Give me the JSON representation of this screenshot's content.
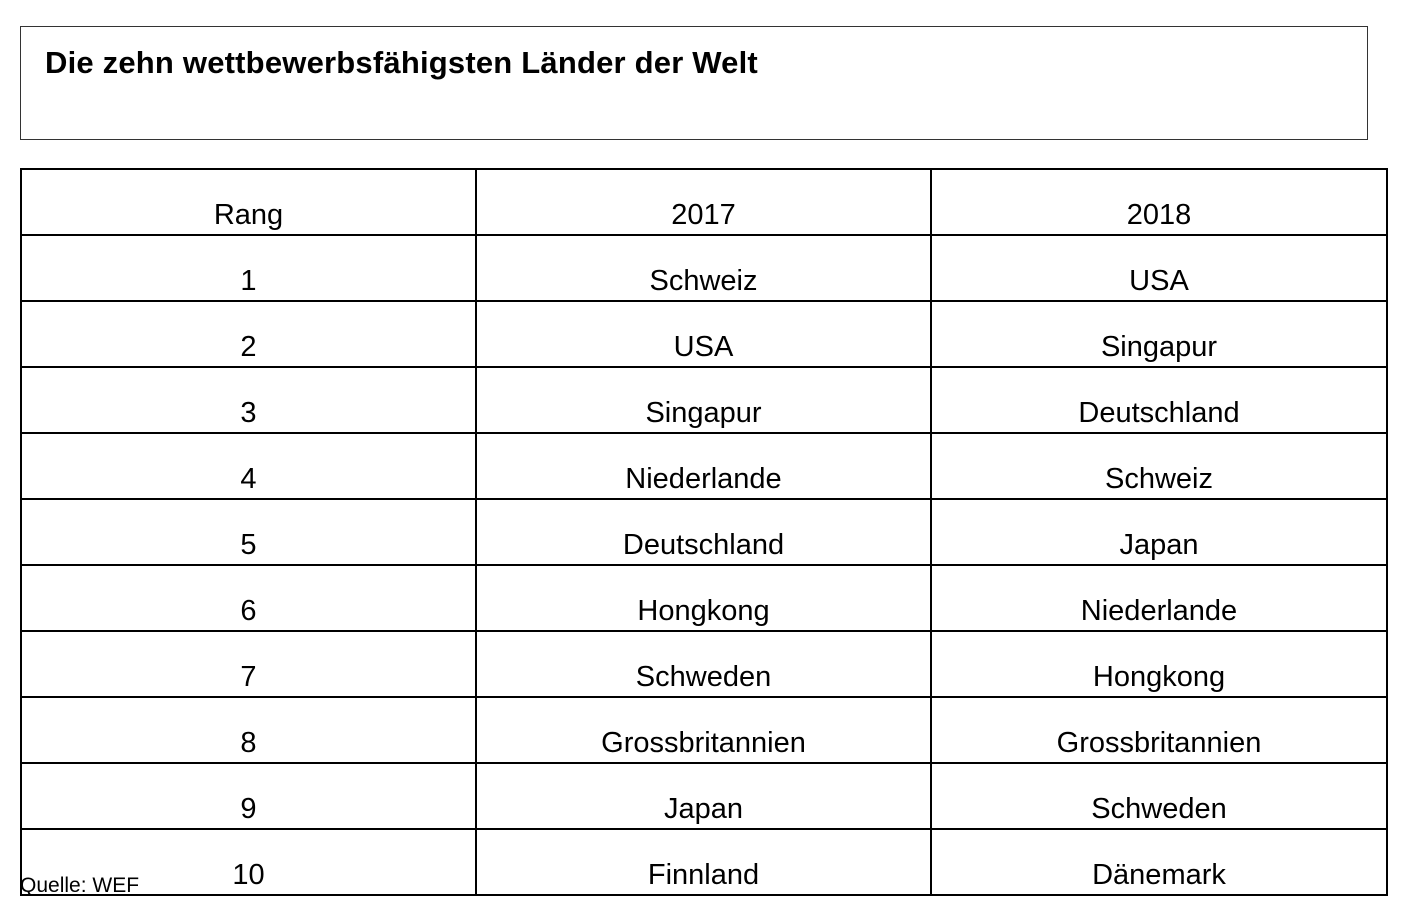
{
  "title": "Die zehn wettbewerbsfähigsten Länder der Welt",
  "table": {
    "headers": [
      "Rang",
      "2017",
      "2018"
    ],
    "rows": [
      [
        "1",
        "Schweiz",
        "USA"
      ],
      [
        "2",
        "USA",
        "Singapur"
      ],
      [
        "3",
        "Singapur",
        "Deutschland"
      ],
      [
        "4",
        "Niederlande",
        "Schweiz"
      ],
      [
        "5",
        "Deutschland",
        "Japan"
      ],
      [
        "6",
        "Hongkong",
        "Niederlande"
      ],
      [
        "7",
        "Schweden",
        "Hongkong"
      ],
      [
        "8",
        "Grossbritannien",
        "Grossbritannien"
      ],
      [
        "9",
        "Japan",
        "Schweden"
      ],
      [
        "10",
        "Finnland",
        "Dänemark"
      ]
    ]
  },
  "source": "Quelle: WEF"
}
